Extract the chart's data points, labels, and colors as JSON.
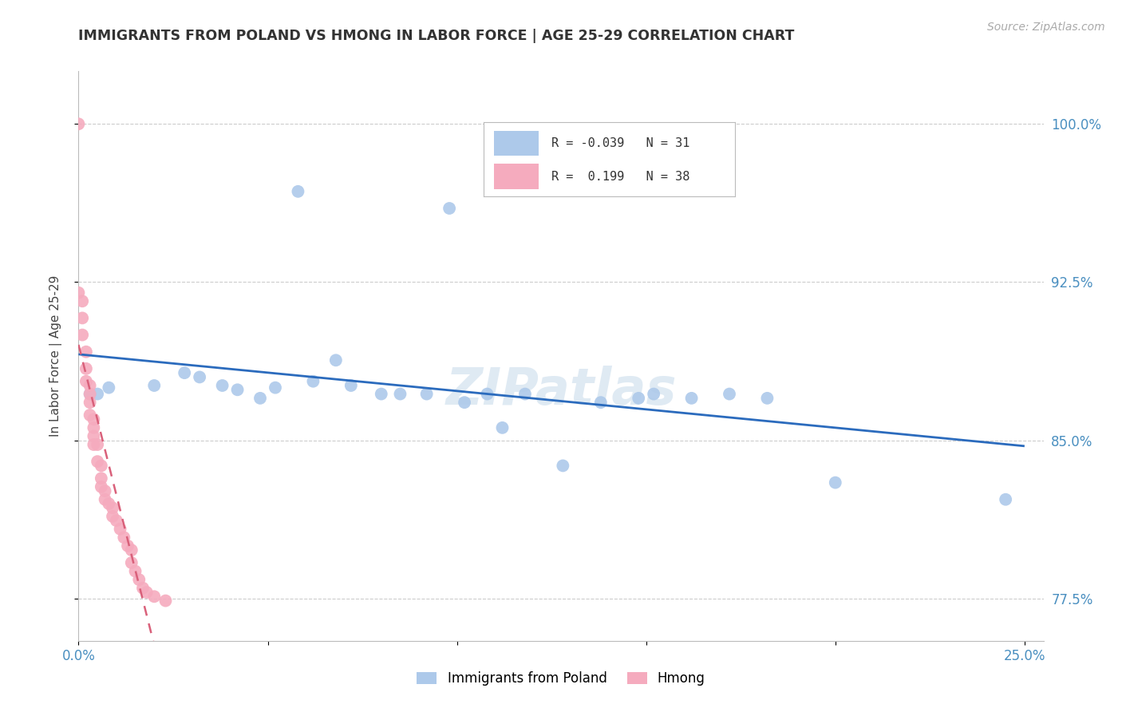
{
  "title": "IMMIGRANTS FROM POLAND VS HMONG IN LABOR FORCE | AGE 25-29 CORRELATION CHART",
  "source": "Source: ZipAtlas.com",
  "ylabel": "In Labor Force | Age 25-29",
  "poland_R": -0.039,
  "poland_N": 31,
  "hmong_R": 0.199,
  "hmong_N": 38,
  "legend_labels": [
    "Immigrants from Poland",
    "Hmong"
  ],
  "poland_color": "#adc9ea",
  "hmong_color": "#f5abbe",
  "poland_line_color": "#2b6bbd",
  "hmong_line_color": "#d9607a",
  "watermark": "ZIPatlas",
  "xlim": [
    0.0,
    0.255
  ],
  "ylim": [
    0.755,
    1.025
  ],
  "x_ticks": [
    0.0,
    0.05,
    0.1,
    0.15,
    0.2,
    0.25
  ],
  "x_tick_labels": [
    "0.0%",
    "",
    "",
    "",
    "",
    "25.0%"
  ],
  "y_ticks": [
    0.775,
    0.85,
    0.925,
    1.0
  ],
  "y_tick_labels": [
    "77.5%",
    "85.0%",
    "92.5%",
    "100.0%"
  ],
  "poland_x": [
    0.003,
    0.005,
    0.008,
    0.02,
    0.028,
    0.032,
    0.038,
    0.042,
    0.048,
    0.052,
    0.058,
    0.062,
    0.068,
    0.072,
    0.08,
    0.085,
    0.092,
    0.098,
    0.102,
    0.108,
    0.112,
    0.118,
    0.128,
    0.138,
    0.148,
    0.152,
    0.162,
    0.172,
    0.182,
    0.2,
    0.245
  ],
  "poland_y": [
    0.872,
    0.872,
    0.875,
    0.876,
    0.882,
    0.88,
    0.876,
    0.874,
    0.87,
    0.875,
    0.968,
    0.878,
    0.888,
    0.876,
    0.872,
    0.872,
    0.872,
    0.96,
    0.868,
    0.872,
    0.856,
    0.872,
    0.838,
    0.868,
    0.87,
    0.872,
    0.87,
    0.872,
    0.87,
    0.83,
    0.822
  ],
  "hmong_x": [
    0.0,
    0.0,
    0.001,
    0.001,
    0.001,
    0.002,
    0.002,
    0.002,
    0.003,
    0.003,
    0.003,
    0.003,
    0.004,
    0.004,
    0.004,
    0.004,
    0.005,
    0.005,
    0.006,
    0.006,
    0.006,
    0.007,
    0.007,
    0.008,
    0.009,
    0.009,
    0.01,
    0.011,
    0.012,
    0.013,
    0.014,
    0.014,
    0.015,
    0.016,
    0.017,
    0.018,
    0.02,
    0.023
  ],
  "hmong_y": [
    1.0,
    0.92,
    0.916,
    0.908,
    0.9,
    0.892,
    0.884,
    0.878,
    0.876,
    0.872,
    0.868,
    0.862,
    0.86,
    0.856,
    0.852,
    0.848,
    0.848,
    0.84,
    0.838,
    0.832,
    0.828,
    0.826,
    0.822,
    0.82,
    0.818,
    0.814,
    0.812,
    0.808,
    0.804,
    0.8,
    0.798,
    0.792,
    0.788,
    0.784,
    0.78,
    0.778,
    0.776,
    0.774
  ]
}
